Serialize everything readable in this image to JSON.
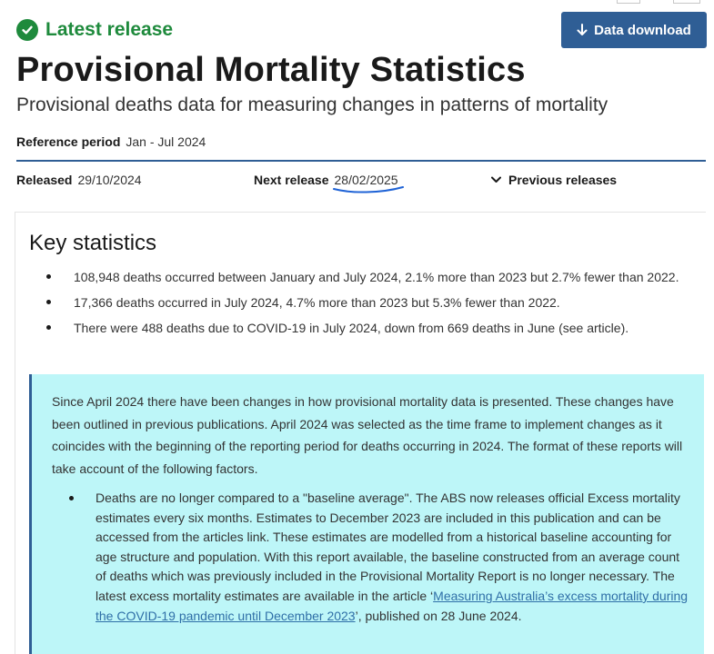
{
  "status": {
    "icon": "check-circle-icon",
    "label": "Latest release",
    "color": "#1e8a3c"
  },
  "download_button": {
    "icon": "arrow-down-icon",
    "label": "Data download",
    "color": "#2f5e95"
  },
  "title": "Provisional Mortality Statistics",
  "subtitle": "Provisional deaths data for measuring changes in patterns of mortality",
  "reference_period": {
    "label": "Reference period",
    "value": "Jan - Jul 2024"
  },
  "released": {
    "label": "Released",
    "value": "29/10/2024"
  },
  "next_release": {
    "label": "Next release",
    "value": "28/02/2025",
    "annotation": "hand-drawn-underline"
  },
  "previous_releases": {
    "icon": "chevron-down-icon",
    "label": "Previous releases"
  },
  "key_statistics": {
    "title": "Key statistics",
    "items": [
      "108,948 deaths occurred between January and July 2024, 2.1% more than 2023 but 2.7% fewer than 2022.",
      "17,366 deaths occurred in July 2024, 4.7% more than 2023 but 5.3% fewer than 2022.",
      "There were 488 deaths due to COVID-19 in July 2024, down from 669 deaths in June (see article)."
    ]
  },
  "notice": {
    "paragraph": "Since April 2024 there have been changes in how provisional mortality data is presented. These changes have been outlined in previous publications. April 2024 was selected as the time frame to implement changes as it coincides with the beginning of the reporting period for deaths occurring in 2024. The format of these reports will take account of the following factors.",
    "bullet_text": "Deaths are no longer compared to a \"baseline average\". The ABS now releases official Excess mortality estimates every six months. Estimates to December 2023 are included in this publication and can be accessed from the articles link. These estimates are modelled from a historical baseline accounting for age structure and population. With this report available, the baseline constructed from an average count of deaths which was previously included in the Provisional Mortality Report is no longer necessary. The latest excess mortality estimates are available in the article ‘",
    "bullet_link": "Measuring Australia’s excess mortality during the COVID-19 pandemic until December 2023",
    "bullet_tail": "’, published on 28 June 2024.",
    "background_color": "#bdf6f8"
  }
}
